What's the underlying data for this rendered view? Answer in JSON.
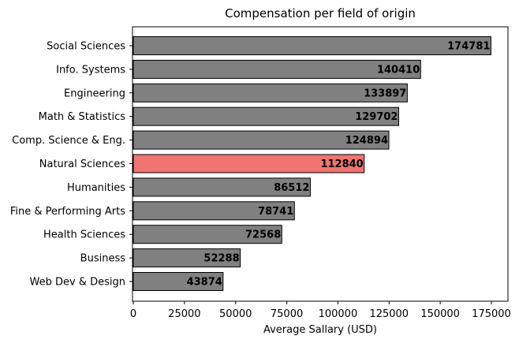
{
  "chart_data": {
    "type": "bar",
    "orientation": "horizontal",
    "title": "Compensation per field of origin",
    "xlabel": "Average Sallary (USD)",
    "ylabel": "",
    "xlim": [
      0,
      183000
    ],
    "xticks": [
      0,
      25000,
      50000,
      75000,
      100000,
      125000,
      150000,
      175000
    ],
    "xtick_labels": [
      "0",
      "25000",
      "50000",
      "75000",
      "100000",
      "125000",
      "150000",
      "175000"
    ],
    "grid": false,
    "categories": [
      "Social Sciences",
      "Info. Systems",
      "Engineering",
      "Math & Statistics",
      "Comp. Science & Eng.",
      "Natural Sciences",
      "Humanities",
      "Fine & Performing Arts",
      "Health Sciences",
      "Business",
      "Web Dev & Design"
    ],
    "values": [
      174781,
      140410,
      133897,
      129702,
      124894,
      112840,
      86512,
      78741,
      72568,
      52288,
      43874
    ],
    "value_labels": [
      "174781",
      "140410",
      "133897",
      "129702",
      "124894",
      "112840",
      "86512",
      "78741",
      "72568",
      "52288",
      "43874"
    ],
    "highlight_index": 5,
    "colors": {
      "bar": "#808080",
      "highlight": "#f07470",
      "edge": "#000000"
    }
  }
}
